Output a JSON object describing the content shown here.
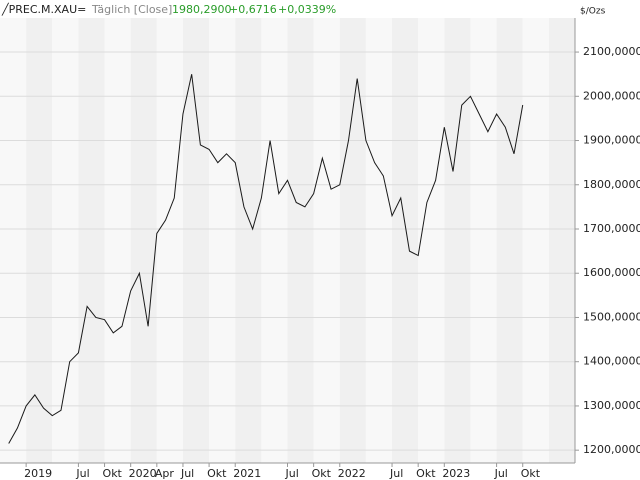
{
  "chart_data": {
    "type": "line",
    "header": {
      "symbol": "╱PREC.M.XAU=",
      "interval": "Täglich [Close]",
      "last": "1980,2900",
      "change": "+0,6716",
      "change_pct": "+0,0339%"
    },
    "unit": "$/Ozs",
    "x": [
      "2018-11",
      "2018-12",
      "2019-01",
      "2019-02",
      "2019-03",
      "2019-04",
      "2019-05",
      "2019-06",
      "2019-07",
      "2019-08",
      "2019-09",
      "2019-10",
      "2019-11",
      "2019-12",
      "2020-01",
      "2020-02",
      "2020-03",
      "2020-04",
      "2020-05",
      "2020-06",
      "2020-07",
      "2020-08",
      "2020-09",
      "2020-10",
      "2020-11",
      "2020-12",
      "2021-01",
      "2021-02",
      "2021-03",
      "2021-04",
      "2021-05",
      "2021-06",
      "2021-07",
      "2021-08",
      "2021-09",
      "2021-10",
      "2021-11",
      "2021-12",
      "2022-01",
      "2022-02",
      "2022-03",
      "2022-04",
      "2022-05",
      "2022-06",
      "2022-07",
      "2022-08",
      "2022-09",
      "2022-10",
      "2022-11",
      "2022-12",
      "2023-01",
      "2023-02",
      "2023-03",
      "2023-04",
      "2023-05",
      "2023-06",
      "2023-07",
      "2023-08",
      "2023-09",
      "2023-10"
    ],
    "series": [
      {
        "name": "PREC.M.XAU=",
        "color": "#1a1a1a",
        "values": [
          1215,
          1250,
          1300,
          1325,
          1295,
          1278,
          1290,
          1400,
          1420,
          1525,
          1500,
          1495,
          1465,
          1480,
          1560,
          1600,
          1480,
          1690,
          1720,
          1770,
          1960,
          2050,
          1890,
          1880,
          1850,
          1870,
          1850,
          1750,
          1700,
          1770,
          1900,
          1780,
          1810,
          1760,
          1750,
          1780,
          1860,
          1790,
          1800,
          1900,
          2040,
          1900,
          1850,
          1820,
          1730,
          1770,
          1650,
          1640,
          1760,
          1810,
          1930,
          1830,
          1980,
          2000,
          1960,
          1920,
          1960,
          1930,
          1870,
          1980.29
        ]
      }
    ],
    "xlim": [
      "2018-10",
      "2024-04"
    ],
    "xticks": [
      {
        "value": "2019-01",
        "label": "2019"
      },
      {
        "value": "2019-07",
        "label": "Jul"
      },
      {
        "value": "2019-10",
        "label": "Okt"
      },
      {
        "value": "2020-01",
        "label": "2020"
      },
      {
        "value": "2020-04",
        "label": "Apr"
      },
      {
        "value": "2020-07",
        "label": "Jul"
      },
      {
        "value": "2020-10",
        "label": "Okt"
      },
      {
        "value": "2021-01",
        "label": "2021"
      },
      {
        "value": "2021-07",
        "label": "Jul"
      },
      {
        "value": "2021-10",
        "label": "Okt"
      },
      {
        "value": "2022-01",
        "label": "2022"
      },
      {
        "value": "2022-07",
        "label": "Jul"
      },
      {
        "value": "2022-10",
        "label": "Okt"
      },
      {
        "value": "2023-01",
        "label": "2023"
      },
      {
        "value": "2023-07",
        "label": "Jul"
      },
      {
        "value": "2023-10",
        "label": "Okt"
      }
    ],
    "ylim": [
      1171,
      2177
    ],
    "yticks": [
      {
        "value": 1200,
        "label": "1200,0000"
      },
      {
        "value": 1300,
        "label": "1300,0000"
      },
      {
        "value": 1400,
        "label": "1400,0000"
      },
      {
        "value": 1500,
        "label": "1500,0000"
      },
      {
        "value": 1600,
        "label": "1600,0000"
      },
      {
        "value": 1700,
        "label": "1700,0000"
      },
      {
        "value": 1800,
        "label": "1800,0000"
      },
      {
        "value": 1900,
        "label": "1900,0000"
      },
      {
        "value": 2000,
        "label": "2000,0000"
      },
      {
        "value": 2100,
        "label": "2100,0000"
      }
    ],
    "grid": true
  }
}
